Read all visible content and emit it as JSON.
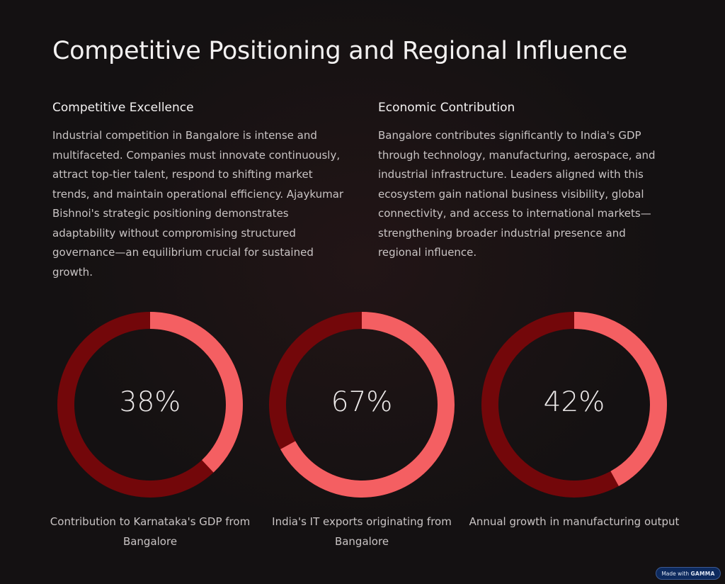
{
  "title": "Competitive Positioning and Regional Influence",
  "columns": [
    {
      "heading": "Competitive Excellence",
      "body": "Industrial competition in Bangalore is intense and multifaceted. Companies must innovate continuously, attract top-tier talent, respond to shifting market trends, and maintain operational efficiency. Ajaykumar Bishnoi's strategic positioning demonstrates adaptability without compromising structured governance—an equilibrium crucial for sustained growth."
    },
    {
      "heading": "Economic Contribution",
      "body": "Bangalore contributes significantly to India's GDP through technology, manufacturing, aerospace, and industrial infrastructure. Leaders aligned with this ecosystem gain national business visibility, global connectivity, and access to international markets—strengthening broader industrial presence and regional influence."
    }
  ],
  "chart_data": [
    {
      "type": "pie",
      "variant": "donut",
      "value": 38,
      "label": "38%",
      "caption": "Contribution to Karnataka's GDP from Bangalore"
    },
    {
      "type": "pie",
      "variant": "donut",
      "value": 67,
      "label": "67%",
      "caption": "India's IT exports originating from Bangalore"
    },
    {
      "type": "pie",
      "variant": "donut",
      "value": 42,
      "label": "42%",
      "caption": "Annual growth in manufacturing output"
    }
  ],
  "colors": {
    "filled": "#f45f62",
    "remaining": "#73070a"
  },
  "badge": {
    "prefix": "Made with",
    "brand": "GAMMA"
  }
}
